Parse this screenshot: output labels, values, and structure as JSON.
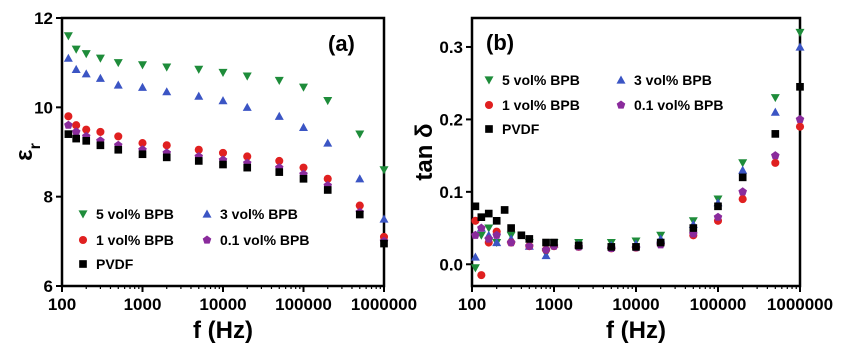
{
  "chart_data": [
    {
      "type": "scatter",
      "panel_label": "(a)",
      "xlabel": "f (Hz)",
      "ylabel": "ε",
      "ylabel_sub": "r",
      "x_scale": "log",
      "xlim": [
        100,
        1000000
      ],
      "ylim": [
        6,
        12
      ],
      "x_ticks": [
        100,
        1000,
        10000,
        100000,
        1000000
      ],
      "x_tick_labels": [
        "100",
        "1000",
        "10000",
        "100000",
        "1000000"
      ],
      "y_ticks": [
        6,
        8,
        10,
        12
      ],
      "y_tick_labels": [
        "6",
        "8",
        "10",
        "12"
      ],
      "legend_position": "bottom-left",
      "series": [
        {
          "name": "5 vol% BPB",
          "color": "#1e8c3a",
          "marker": "triangle-down",
          "x": [
            120,
            150,
            200,
            300,
            500,
            1000,
            2000,
            5000,
            10000,
            20000,
            50000,
            100000,
            200000,
            500000,
            1000000
          ],
          "y": [
            11.6,
            11.3,
            11.2,
            11.1,
            11.0,
            10.95,
            10.9,
            10.85,
            10.78,
            10.7,
            10.6,
            10.45,
            10.15,
            9.4,
            8.6
          ]
        },
        {
          "name": "3 vol% BPB",
          "color": "#3b55c4",
          "marker": "triangle-up",
          "x": [
            120,
            150,
            200,
            300,
            500,
            1000,
            2000,
            5000,
            10000,
            20000,
            50000,
            100000,
            200000,
            500000,
            1000000
          ],
          "y": [
            11.1,
            10.85,
            10.75,
            10.65,
            10.5,
            10.45,
            10.35,
            10.25,
            10.15,
            10.0,
            9.8,
            9.55,
            9.2,
            8.4,
            7.5
          ]
        },
        {
          "name": "1 vol% BPB",
          "color": "#e02020",
          "marker": "circle",
          "x": [
            120,
            150,
            200,
            300,
            500,
            1000,
            2000,
            5000,
            10000,
            20000,
            50000,
            100000,
            200000,
            500000,
            1000000
          ],
          "y": [
            9.8,
            9.6,
            9.5,
            9.45,
            9.35,
            9.2,
            9.15,
            9.05,
            8.98,
            8.9,
            8.8,
            8.65,
            8.4,
            7.8,
            7.1
          ]
        },
        {
          "name": "0.1 vol% BPB",
          "color": "#8a2b9c",
          "marker": "pentagon",
          "x": [
            120,
            150,
            200,
            300,
            500,
            1000,
            2000,
            5000,
            10000,
            20000,
            50000,
            100000,
            200000,
            500000,
            1000000
          ],
          "y": [
            9.6,
            9.45,
            9.35,
            9.25,
            9.15,
            9.05,
            8.98,
            8.9,
            8.82,
            8.75,
            8.65,
            8.5,
            8.25,
            7.65,
            7.0
          ]
        },
        {
          "name": "PVDF",
          "color": "#000000",
          "marker": "square",
          "x": [
            120,
            150,
            200,
            300,
            500,
            1000,
            2000,
            5000,
            10000,
            20000,
            50000,
            100000,
            200000,
            500000,
            1000000
          ],
          "y": [
            9.4,
            9.3,
            9.25,
            9.15,
            9.05,
            8.95,
            8.88,
            8.8,
            8.72,
            8.65,
            8.55,
            8.4,
            8.15,
            7.6,
            6.95
          ]
        }
      ]
    },
    {
      "type": "scatter",
      "panel_label": "(b)",
      "xlabel": "f (Hz)",
      "ylabel": "tan δ",
      "x_scale": "log",
      "xlim": [
        100,
        1000000
      ],
      "ylim": [
        -0.03,
        0.34
      ],
      "x_ticks": [
        100,
        1000,
        10000,
        100000,
        1000000
      ],
      "x_tick_labels": [
        "100",
        "1000",
        "10000",
        "100000",
        "1000000"
      ],
      "y_ticks": [
        0.0,
        0.1,
        0.2,
        0.3
      ],
      "y_tick_labels": [
        "0.0",
        "0.1",
        "0.2",
        "0.3"
      ],
      "legend_position": "top-left",
      "series": [
        {
          "name": "5 vol% BPB",
          "color": "#1e8c3a",
          "marker": "triangle-down",
          "x": [
            110,
            130,
            160,
            200,
            300,
            500,
            800,
            1000,
            2000,
            5000,
            10000,
            20000,
            50000,
            100000,
            200000,
            500000,
            1000000
          ],
          "y": [
            -0.005,
            0.04,
            0.05,
            0.03,
            0.04,
            0.03,
            0.015,
            0.03,
            0.03,
            0.03,
            0.032,
            0.04,
            0.06,
            0.09,
            0.14,
            0.23,
            0.32
          ]
        },
        {
          "name": "3 vol% BPB",
          "color": "#3b55c4",
          "marker": "triangle-up",
          "x": [
            110,
            130,
            160,
            200,
            300,
            500,
            800,
            1000,
            2000,
            5000,
            10000,
            20000,
            50000,
            100000,
            200000,
            500000,
            1000000
          ],
          "y": [
            0.01,
            0.05,
            0.04,
            0.03,
            0.035,
            0.025,
            0.012,
            0.028,
            0.027,
            0.026,
            0.028,
            0.035,
            0.055,
            0.085,
            0.13,
            0.21,
            0.3
          ]
        },
        {
          "name": "1 vol% BPB",
          "color": "#e02020",
          "marker": "circle",
          "x": [
            110,
            130,
            160,
            200,
            300,
            500,
            800,
            1000,
            2000,
            5000,
            10000,
            20000,
            50000,
            100000,
            200000,
            500000,
            1000000
          ],
          "y": [
            0.06,
            -0.015,
            0.03,
            0.045,
            0.03,
            0.025,
            0.02,
            0.025,
            0.024,
            0.022,
            0.023,
            0.028,
            0.04,
            0.06,
            0.09,
            0.14,
            0.19
          ]
        },
        {
          "name": "0.1 vol% BPB",
          "color": "#8a2b9c",
          "marker": "pentagon",
          "x": [
            110,
            130,
            160,
            200,
            300,
            500,
            800,
            1000,
            2000,
            5000,
            10000,
            20000,
            50000,
            100000,
            200000,
            500000,
            1000000
          ],
          "y": [
            0.04,
            0.05,
            0.035,
            0.04,
            0.03,
            0.025,
            0.02,
            0.025,
            0.024,
            0.022,
            0.023,
            0.027,
            0.042,
            0.065,
            0.1,
            0.15,
            0.2
          ]
        },
        {
          "name": "PVDF",
          "color": "#000000",
          "marker": "square",
          "x": [
            110,
            130,
            160,
            200,
            250,
            300,
            400,
            500,
            800,
            1000,
            2000,
            5000,
            10000,
            20000,
            50000,
            100000,
            200000,
            500000,
            1000000
          ],
          "y": [
            0.08,
            0.065,
            0.07,
            0.06,
            0.075,
            0.05,
            0.04,
            0.035,
            0.03,
            0.03,
            0.026,
            0.024,
            0.024,
            0.03,
            0.05,
            0.08,
            0.12,
            0.18,
            0.245
          ]
        }
      ]
    }
  ]
}
